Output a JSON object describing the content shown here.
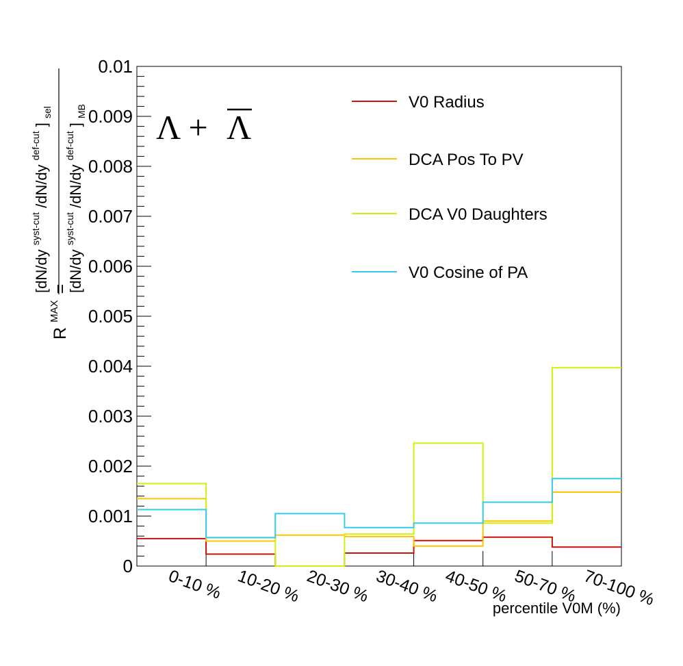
{
  "chart_data": {
    "type": "step",
    "categories": [
      "0-10 %",
      "10-20 %",
      "20-30 %",
      "30-40 %",
      "40-50 %",
      "50-70 %",
      "70-100 %"
    ],
    "xlabel": "percentile V0M (%)",
    "ylabel": {
      "lhs": "R",
      "lhs_sup": "MAX",
      "eq": "=",
      "num_l": "[dN/dy",
      "num_sup1": "syst-cut",
      "num_mid": "/dN/dy",
      "num_sup2": "def-cut",
      "num_r": "]",
      "num_sub": "sel",
      "den_l": "[dN/dy",
      "den_sup1": "syst-cut",
      "den_mid": "/dN/dy",
      "den_sup2": "def-cut",
      "den_r": "]",
      "den_sub": "MB"
    },
    "ylim": [
      0,
      0.01
    ],
    "yticks": [
      "0",
      "0.001",
      "0.002",
      "0.003",
      "0.004",
      "0.005",
      "0.006",
      "0.007",
      "0.008",
      "0.009",
      "0.01"
    ],
    "annotation": {
      "main": "Λ + ",
      "bar": "Λ"
    },
    "legend_position": "top-right",
    "series": [
      {
        "name": "V0 Radius",
        "color": "#c8140a",
        "values": [
          0.00055,
          0.00024,
          0.0,
          0.00026,
          0.00051,
          0.00058,
          0.00038
        ]
      },
      {
        "name": "DCA Pos To PV",
        "color": "#ffc300",
        "values": [
          0.00135,
          0.0005,
          0.00062,
          0.00059,
          0.0004,
          0.0009,
          0.00148
        ]
      },
      {
        "name": "DCA V0 Daughters",
        "color": "#d2f00a",
        "values": [
          0.00165,
          0.00057,
          0.0,
          0.00064,
          0.00246,
          0.00086,
          0.00397
        ]
      },
      {
        "name": "V0 Cosine of PA",
        "color": "#33ccee",
        "values": [
          0.00113,
          0.00057,
          0.00105,
          0.00077,
          0.00086,
          0.00128,
          0.00175
        ]
      }
    ]
  }
}
